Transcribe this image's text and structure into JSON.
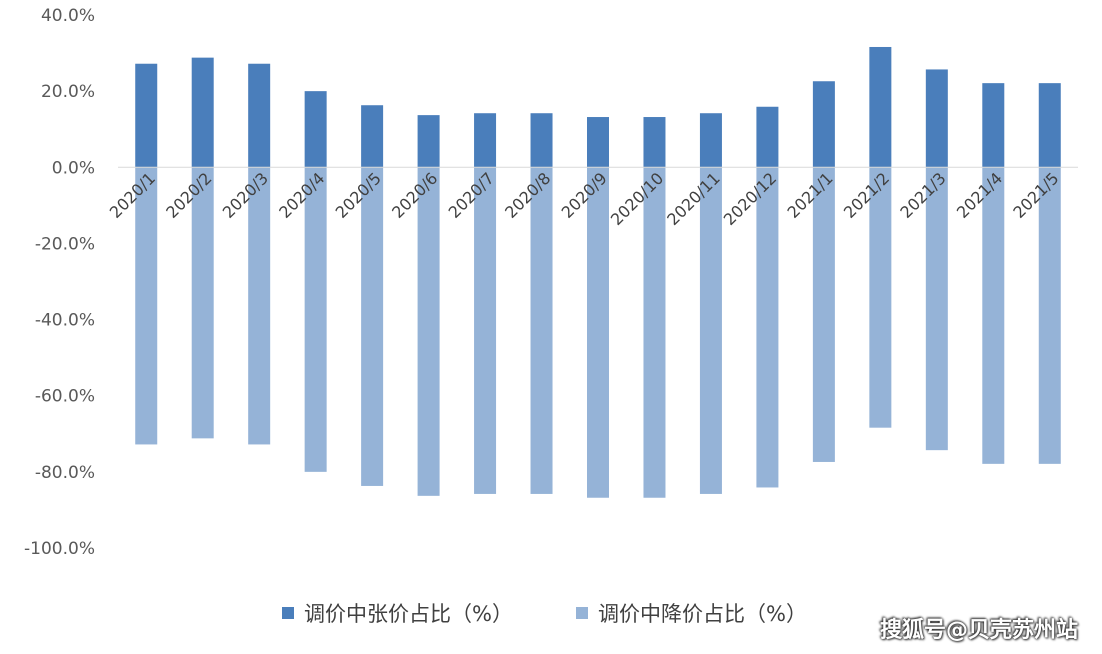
{
  "chart_data": {
    "type": "bar",
    "categories": [
      "2020/1",
      "2020/2",
      "2020/3",
      "2020/4",
      "2020/5",
      "2020/6",
      "2020/7",
      "2020/8",
      "2020/9",
      "2020/10",
      "2020/11",
      "2020/12",
      "2021/1",
      "2021/2",
      "2021/3",
      "2021/4",
      "2021/5"
    ],
    "series": [
      {
        "name": "调价中张价占比（%）",
        "color": "#4a7ebb",
        "values": [
          27.2,
          28.8,
          27.2,
          20.0,
          16.3,
          13.7,
          14.2,
          14.2,
          13.2,
          13.2,
          14.2,
          15.9,
          22.6,
          31.6,
          25.7,
          22.1,
          22.1
        ]
      },
      {
        "name": "调价中降价占比（%）",
        "color": "#95b3d7",
        "values": [
          -72.8,
          -71.2,
          -72.8,
          -80.0,
          -83.7,
          -86.3,
          -85.8,
          -85.8,
          -86.8,
          -86.8,
          -85.8,
          -84.1,
          -77.4,
          -68.4,
          -74.3,
          -77.9,
          -77.9
        ]
      }
    ],
    "y_ticks": [
      "40.0%",
      "20.0%",
      "0.0%",
      "-20.0%",
      "-40.0%",
      "-60.0%",
      "-80.0%",
      "-100.0%"
    ],
    "ylim": [
      -100,
      40
    ],
    "grid": false,
    "legend_position": "bottom"
  },
  "watermark": "搜狐号@贝壳苏州站"
}
